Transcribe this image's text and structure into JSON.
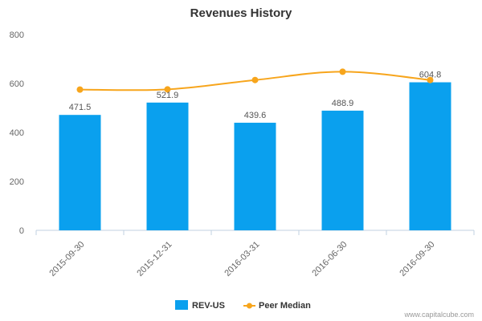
{
  "chart_data": {
    "type": "bar",
    "title": "Revenues History",
    "categories": [
      "2015-09-30",
      "2015-12-31",
      "2016-03-31",
      "2016-06-30",
      "2016-09-30"
    ],
    "series": [
      {
        "name": "REV-US",
        "type": "bar",
        "color": "#0aa0ee",
        "values": [
          471.5,
          521.9,
          439.6,
          488.9,
          604.8
        ],
        "labels": [
          "471.5",
          "521.9",
          "439.6",
          "488.9",
          "604.8"
        ]
      },
      {
        "name": "Peer Median",
        "type": "line",
        "color": "#f7a51c",
        "values": [
          575,
          576,
          614,
          648,
          614
        ]
      }
    ],
    "ylim": [
      0,
      800
    ],
    "yticks": [
      0,
      200,
      400,
      600,
      800
    ],
    "xlabel": "",
    "ylabel": "",
    "grid": false,
    "legend": "bottom"
  },
  "credit": "www.capitalcube.com"
}
